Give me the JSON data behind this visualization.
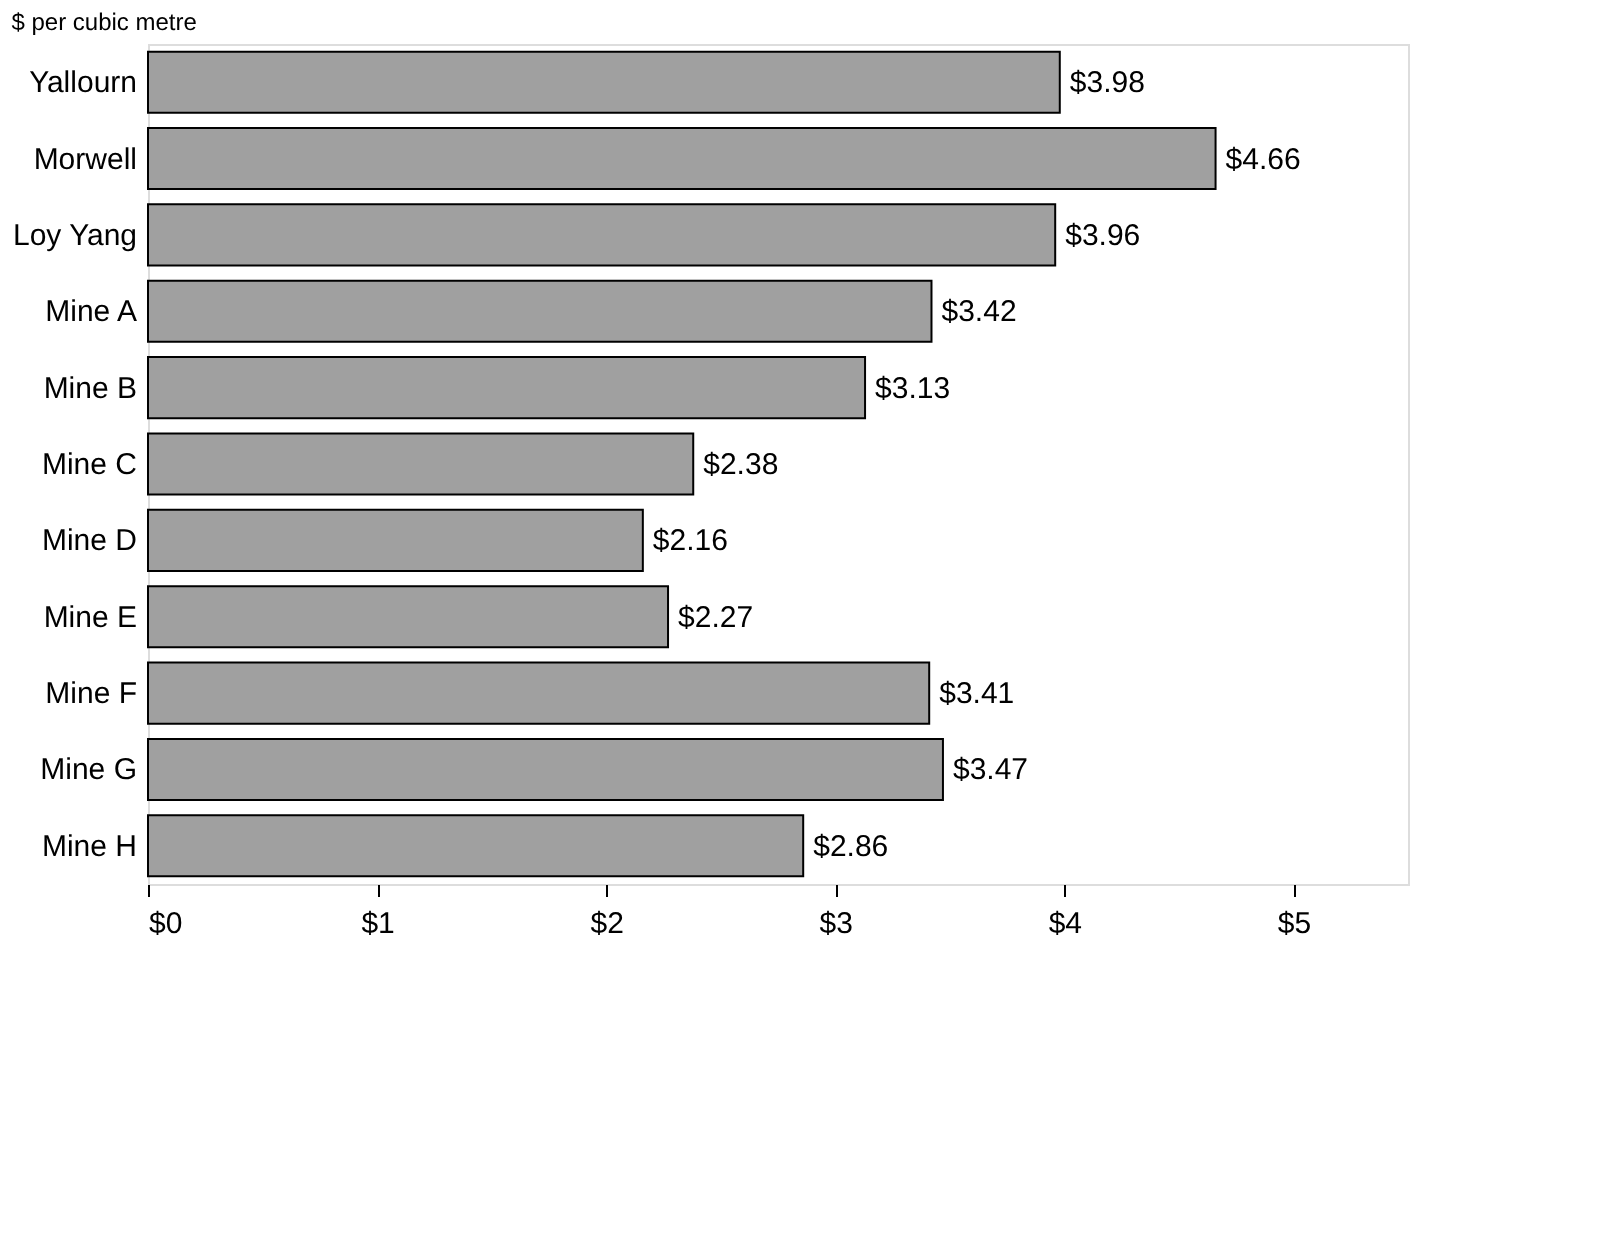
{
  "chart_data": {
    "type": "bar",
    "orientation": "horizontal",
    "xlabel": "$ per cubic metre",
    "categories": [
      "Yallourn",
      "Morwell",
      "Loy Yang",
      "Mine A",
      "Mine B",
      "Mine C",
      "Mine D",
      "Mine E",
      "Mine F",
      "Mine G",
      "Mine H"
    ],
    "values": [
      3.98,
      4.66,
      3.96,
      3.42,
      3.13,
      2.38,
      2.16,
      2.27,
      3.41,
      3.47,
      2.86
    ],
    "value_labels": [
      "$3.98",
      "$4.66",
      "$3.96",
      "$3.42",
      "$3.13",
      "$2.38",
      "$2.16",
      "$2.27",
      "$3.41",
      "$3.47",
      "$2.86"
    ],
    "color": "#a0a0a0",
    "xlim": [
      0,
      5.5
    ],
    "xticks": [
      {
        "value": 0,
        "label": "$0"
      },
      {
        "value": 1,
        "label": "$1"
      },
      {
        "value": 2,
        "label": "$2"
      },
      {
        "value": 3,
        "label": "$3"
      },
      {
        "value": 4,
        "label": "$4"
      },
      {
        "value": 5,
        "label": "$5"
      }
    ],
    "data_labels": false
  }
}
